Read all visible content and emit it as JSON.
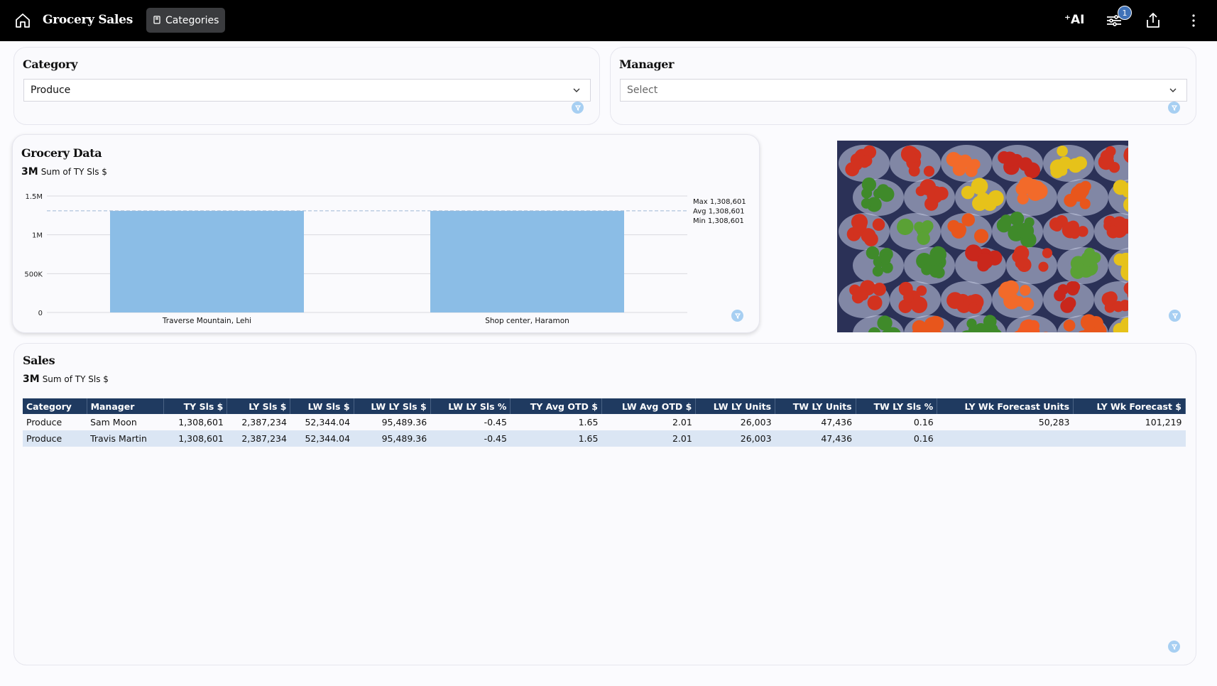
{
  "app": {
    "title": "Grocery Sales",
    "tab_label": "Categories",
    "ai_label": "AI",
    "filter_badge": "1"
  },
  "filters": {
    "category": {
      "title": "Category",
      "value": "Produce"
    },
    "manager": {
      "title": "Manager",
      "placeholder": "Select"
    }
  },
  "grocery": {
    "title": "Grocery Data",
    "metric_value": "3M",
    "metric_label": "Sum of TY Sls $"
  },
  "chart_data": {
    "type": "bar",
    "categories": [
      "Traverse Mountain, Lehi",
      "Shop center, Haramon"
    ],
    "values": [
      1308601,
      1308601
    ],
    "ylim": [
      0,
      1500000
    ],
    "yticks": [
      0,
      500000,
      1000000,
      1500000
    ],
    "ytick_labels": [
      "0",
      "500K",
      "1M",
      "1.5M"
    ],
    "reference_line": 1308601,
    "annotations": [
      "Max 1,308,601",
      "Avg 1,308,601",
      "Min 1,308,601"
    ],
    "color": "#8bbde6"
  },
  "sales": {
    "title": "Sales",
    "metric_value": "3M",
    "metric_label": "Sum of TY Sls $",
    "columns": [
      "Category",
      "Manager",
      "TY Sls $",
      "LY Sls $",
      "LW Sls $",
      "LW LY Sls $",
      "LW LY Sls %",
      "TY Avg OTD $",
      "LW Avg OTD $",
      "LW LY Units",
      "TW LY Units",
      "TW LY Sls %",
      "LY Wk Forecast Units",
      "LY Wk Forecast $"
    ],
    "rows": [
      [
        "Produce",
        "Sam Moon",
        "1,308,601",
        "2,387,234",
        "52,344.04",
        "95,489.36",
        "-0.45",
        "1.65",
        "2.01",
        "26,003",
        "47,436",
        "0.16",
        "50,283",
        "101,219"
      ],
      [
        "Produce",
        "Travis Martin",
        "1,308,601",
        "2,387,234",
        "52,344.04",
        "95,489.36",
        "-0.45",
        "1.65",
        "2.01",
        "26,003",
        "47,436",
        "0.16",
        "",
        ""
      ]
    ]
  },
  "colors": {
    "topbar": "#000000",
    "header": "#1f3a60",
    "bar": "#8bbde6",
    "alt_row": "#dbe6f4"
  }
}
